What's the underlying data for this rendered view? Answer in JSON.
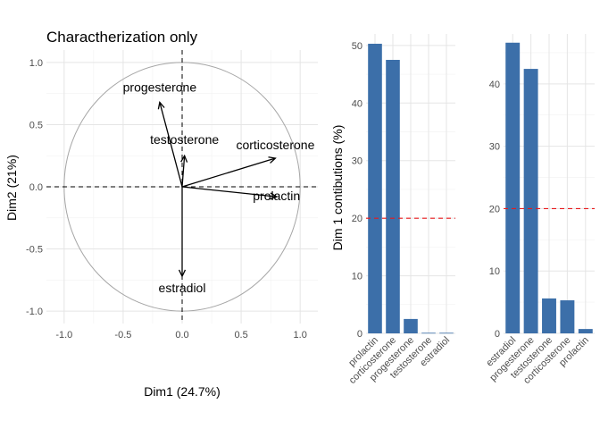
{
  "chart_data": [
    {
      "type": "scatter",
      "title": "Charactherization only",
      "xlabel": "Dim1 (24.7%)",
      "ylabel": "Dim2 (21%)",
      "xlim": [
        -1.15,
        1.15
      ],
      "ylim": [
        -1.1,
        1.1
      ],
      "xticks": [
        -1.0,
        -0.5,
        0.0,
        0.5,
        1.0
      ],
      "xtick_labels": [
        "-1.0",
        "-0.5",
        "0.0",
        "0.5",
        "1.0"
      ],
      "yticks": [
        -1.0,
        -0.5,
        0.0,
        0.5,
        1.0
      ],
      "ytick_labels": [
        "-1.0",
        "-0.5",
        "0.0",
        "0.5",
        "1.0"
      ],
      "grid": true,
      "correlation_circle_radius": 1.0,
      "vectors": [
        {
          "name": "progesterone",
          "x": -0.19,
          "y": 0.68
        },
        {
          "name": "testosterone",
          "x": 0.02,
          "y": 0.25
        },
        {
          "name": "corticosterone",
          "x": 0.79,
          "y": 0.23
        },
        {
          "name": "prolactin",
          "x": 0.8,
          "y": -0.08
        },
        {
          "name": "estradiol",
          "x": 0.0,
          "y": -0.72
        }
      ]
    },
    {
      "type": "bar",
      "title": "",
      "xlabel": "",
      "ylabel": "Dim 1 contibutions (%)",
      "categories": [
        "prolactin",
        "corticosterone",
        "progesterone",
        "testosterone",
        "estradiol"
      ],
      "values": [
        50.3,
        47.5,
        2.5,
        0.1,
        0.1
      ],
      "ylim": [
        0,
        52
      ],
      "yticks": [
        0,
        10,
        20,
        30,
        40,
        50
      ],
      "ytick_labels": [
        "0",
        "10",
        "20",
        "30",
        "40",
        "50"
      ],
      "reference_line": 20,
      "grid": true
    },
    {
      "type": "bar",
      "title": "",
      "xlabel": "",
      "ylabel": "",
      "categories": [
        "estradiol",
        "progesterone",
        "testosterone",
        "corticosterone",
        "prolactin"
      ],
      "values": [
        46.6,
        42.4,
        5.6,
        5.3,
        0.7
      ],
      "ylim": [
        0,
        48
      ],
      "yticks": [
        0,
        10,
        20,
        30,
        40
      ],
      "ytick_labels": [
        "0",
        "10",
        "20",
        "30",
        "40"
      ],
      "reference_line": 20,
      "grid": true
    }
  ],
  "colors": {
    "bar": "#3C6FA9",
    "reference_line": "#E8191B",
    "grid_major": "#E5E5E5",
    "grid_minor": "#F2F2F2",
    "circle": "#A6A6A6",
    "vector": "#000000"
  }
}
